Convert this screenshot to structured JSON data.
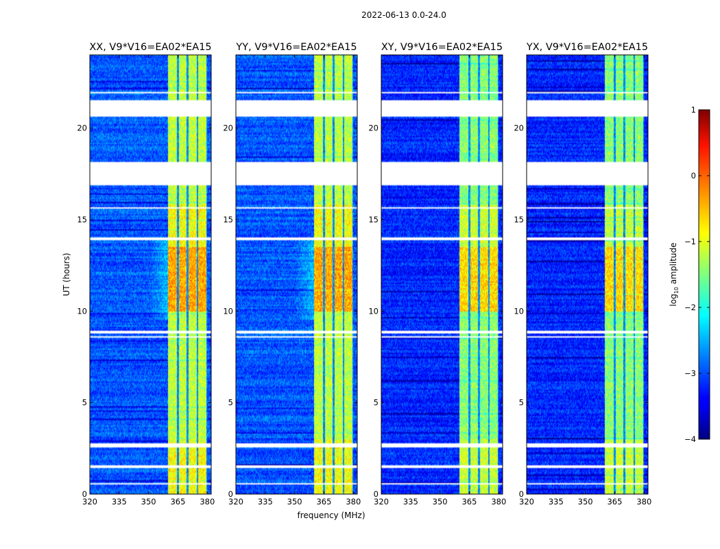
{
  "chart_data": {
    "type": "heatmap",
    "suptitle": "2022-06-13 0.0-24.0",
    "xlabel": "frequency (MHz)",
    "ylabel": "UT (hours)",
    "xlim": [
      320,
      382
    ],
    "ylim": [
      0,
      24
    ],
    "xticks": [
      320,
      335,
      350,
      365,
      380
    ],
    "xtick_labels": [
      "320",
      "335",
      "350",
      "365",
      "380"
    ],
    "yticks": [
      0,
      5,
      10,
      15,
      20
    ],
    "ytick_labels": [
      "0",
      "5",
      "10",
      "15",
      "20"
    ],
    "panels": [
      {
        "title": "XX, V9*V16=EA02*EA15",
        "pol": "XX",
        "show_ylabel": true
      },
      {
        "title": "YY, V9*V16=EA02*EA15",
        "pol": "YY",
        "show_ylabel": false
      },
      {
        "title": "XY, V9*V16=EA02*EA15",
        "pol": "XY",
        "show_ylabel": false
      },
      {
        "title": "YX, V9*V16=EA02*EA15",
        "pol": "YX",
        "show_ylabel": false
      }
    ],
    "signal_band_mhz": [
      360,
      380
    ],
    "signal_channels_mhz": [
      [
        360,
        364.5
      ],
      [
        365.5,
        369.5
      ],
      [
        370.5,
        374.5
      ],
      [
        375.5,
        379.5
      ]
    ],
    "flagged_ut_ranges_hours": [
      [
        16.9,
        18.15
      ],
      [
        20.6,
        21.5
      ],
      [
        0.5,
        0.6
      ],
      [
        1.45,
        1.55
      ],
      [
        2.55,
        2.75
      ],
      [
        8.55,
        8.65
      ],
      [
        8.75,
        8.9
      ],
      [
        13.9,
        14.05
      ],
      [
        15.6,
        15.7
      ],
      [
        21.9,
        22.0
      ]
    ],
    "colorbar": {
      "label": "log10 amplitude",
      "min": -4,
      "max": 1,
      "ticks": [
        -4,
        -3,
        -2,
        -1,
        0,
        1
      ],
      "tick_labels": [
        "−4",
        "−3",
        "−2",
        "−1",
        "0",
        "1"
      ],
      "colormap": "jet"
    }
  }
}
